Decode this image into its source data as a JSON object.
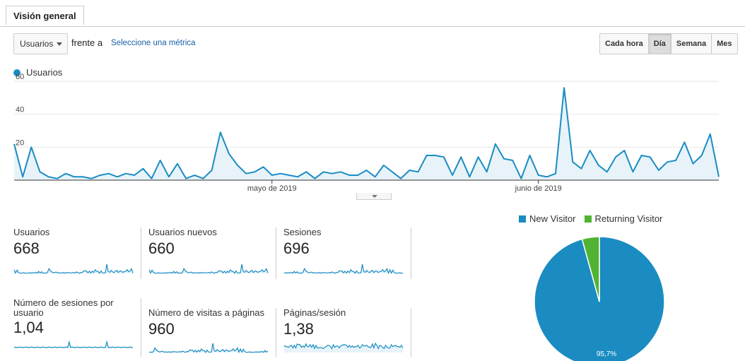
{
  "tab": {
    "label": "Visión general"
  },
  "controls": {
    "metric_select": "Usuarios",
    "versus": "frente a",
    "pick_metric": "Seleccione una métrica",
    "granularity": [
      {
        "label": "Cada hora",
        "active": false
      },
      {
        "label": "Día",
        "active": true
      },
      {
        "label": "Semana",
        "active": false
      },
      {
        "label": "Mes",
        "active": false
      }
    ]
  },
  "colors": {
    "series": "#1a8cc2",
    "returning": "#50b432",
    "grid": "#e6e6e6",
    "area": "#e7f3f9"
  },
  "chart_data": {
    "type": "area",
    "series_name": "Usuarios",
    "y_ticks": [
      "60",
      "40",
      "20"
    ],
    "ylim": [
      0,
      60
    ],
    "x_labels": [
      {
        "text": "mayo de 2019",
        "index": 30
      },
      {
        "text": "junio de 2019",
        "index": 61
      }
    ],
    "values": [
      22,
      2,
      20,
      5,
      2,
      1,
      4,
      2,
      2,
      1,
      3,
      4,
      2,
      4,
      3,
      7,
      1,
      12,
      2,
      10,
      1,
      3,
      1,
      6,
      29,
      16,
      9,
      4,
      5,
      8,
      3,
      4,
      3,
      2,
      5,
      1,
      5,
      4,
      5,
      3,
      3,
      6,
      2,
      9,
      5,
      1,
      6,
      5,
      15,
      15,
      14,
      3,
      14,
      2,
      14,
      5,
      22,
      13,
      12,
      1,
      15,
      3,
      2,
      4,
      56,
      11,
      7,
      18,
      9,
      5,
      14,
      18,
      5,
      15,
      14,
      6,
      11,
      12,
      23,
      10,
      15,
      28,
      2
    ]
  },
  "tiles": [
    {
      "label": "Usuarios",
      "value": "668"
    },
    {
      "label": "Usuarios nuevos",
      "value": "660"
    },
    {
      "label": "Sesiones",
      "value": "696"
    },
    {
      "label": "Número de sesiones por usuario",
      "value": "1,04"
    },
    {
      "label": "Número de visitas a páginas",
      "value": "960"
    },
    {
      "label": "Páginas/sesión",
      "value": "1,38"
    }
  ],
  "pie": {
    "legend": [
      "New Visitor",
      "Returning Visitor"
    ],
    "values": [
      95.7,
      4.3
    ],
    "label": "95,7%"
  }
}
